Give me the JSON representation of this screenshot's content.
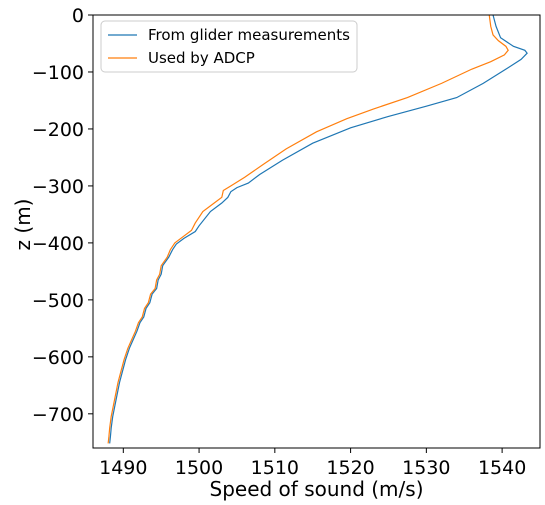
{
  "chart_data": {
    "type": "line",
    "xlabel": "Speed of sound (m/s)",
    "ylabel": "z (m)",
    "xlim": [
      1486,
      1545
    ],
    "ylim": [
      -760,
      0
    ],
    "x_ticks": [
      1490,
      1500,
      1510,
      1520,
      1530,
      1540
    ],
    "y_ticks": [
      0,
      -100,
      -200,
      -300,
      -400,
      -500,
      -600,
      -700
    ],
    "x_tick_labels": [
      "1490",
      "1500",
      "1510",
      "1520",
      "1530",
      "1540"
    ],
    "y_tick_labels": [
      "0",
      "−100",
      "−200",
      "−300",
      "−400",
      "−500",
      "−600",
      "−700"
    ],
    "grid": false,
    "legend_position": "top-left",
    "series": [
      {
        "name": "From glider measurements",
        "color": "#1f77b4",
        "points": [
          [
            1538.8,
            0
          ],
          [
            1539.2,
            -20
          ],
          [
            1539.8,
            -40
          ],
          [
            1541.5,
            -55
          ],
          [
            1543.0,
            -62
          ],
          [
            1543.3,
            -67
          ],
          [
            1542.5,
            -78
          ],
          [
            1540.5,
            -95
          ],
          [
            1537.5,
            -120
          ],
          [
            1534.0,
            -145
          ],
          [
            1530.0,
            -160
          ],
          [
            1525.0,
            -178
          ],
          [
            1520.0,
            -198
          ],
          [
            1515.0,
            -225
          ],
          [
            1511.0,
            -255
          ],
          [
            1508.0,
            -280
          ],
          [
            1506.5,
            -295
          ],
          [
            1505.0,
            -303
          ],
          [
            1504.2,
            -310
          ],
          [
            1503.8,
            -320
          ],
          [
            1503.0,
            -330
          ],
          [
            1501.5,
            -345
          ],
          [
            1500.0,
            -370
          ],
          [
            1499.5,
            -380
          ],
          [
            1498.0,
            -392
          ],
          [
            1497.0,
            -402
          ],
          [
            1496.5,
            -412
          ],
          [
            1496.0,
            -425
          ],
          [
            1495.2,
            -440
          ],
          [
            1495.0,
            -455
          ],
          [
            1494.6,
            -465
          ],
          [
            1494.4,
            -480
          ],
          [
            1493.8,
            -490
          ],
          [
            1493.5,
            -505
          ],
          [
            1493.0,
            -515
          ],
          [
            1492.7,
            -530
          ],
          [
            1492.2,
            -540
          ],
          [
            1491.8,
            -555
          ],
          [
            1491.3,
            -570
          ],
          [
            1490.8,
            -585
          ],
          [
            1490.3,
            -605
          ],
          [
            1489.9,
            -625
          ],
          [
            1489.5,
            -645
          ],
          [
            1489.2,
            -665
          ],
          [
            1488.9,
            -685
          ],
          [
            1488.6,
            -705
          ],
          [
            1488.4,
            -725
          ],
          [
            1488.3,
            -740
          ],
          [
            1488.2,
            -752
          ]
        ]
      },
      {
        "name": "Used by ADCP",
        "color": "#ff7f0e",
        "points": [
          [
            1538.3,
            0
          ],
          [
            1538.5,
            -20
          ],
          [
            1538.8,
            -35
          ],
          [
            1539.5,
            -45
          ],
          [
            1540.5,
            -55
          ],
          [
            1540.8,
            -62
          ],
          [
            1540.3,
            -70
          ],
          [
            1538.5,
            -82
          ],
          [
            1536.0,
            -95
          ],
          [
            1532.0,
            -120
          ],
          [
            1527.5,
            -145
          ],
          [
            1523.0,
            -165
          ],
          [
            1519.5,
            -182
          ],
          [
            1515.5,
            -205
          ],
          [
            1511.5,
            -235
          ],
          [
            1508.5,
            -262
          ],
          [
            1506.0,
            -285
          ],
          [
            1504.2,
            -300
          ],
          [
            1503.2,
            -308
          ],
          [
            1503.0,
            -320
          ],
          [
            1502.0,
            -330
          ],
          [
            1500.5,
            -345
          ],
          [
            1499.5,
            -365
          ],
          [
            1499.0,
            -378
          ],
          [
            1497.8,
            -390
          ],
          [
            1496.8,
            -400
          ],
          [
            1496.2,
            -412
          ],
          [
            1495.8,
            -425
          ],
          [
            1495.0,
            -440
          ],
          [
            1494.8,
            -455
          ],
          [
            1494.4,
            -465
          ],
          [
            1494.2,
            -480
          ],
          [
            1493.6,
            -490
          ],
          [
            1493.3,
            -505
          ],
          [
            1492.8,
            -515
          ],
          [
            1492.5,
            -530
          ],
          [
            1492.0,
            -540
          ],
          [
            1491.6,
            -555
          ],
          [
            1491.1,
            -570
          ],
          [
            1490.6,
            -585
          ],
          [
            1490.1,
            -605
          ],
          [
            1489.7,
            -625
          ],
          [
            1489.3,
            -645
          ],
          [
            1489.0,
            -665
          ],
          [
            1488.7,
            -685
          ],
          [
            1488.4,
            -705
          ],
          [
            1488.2,
            -725
          ],
          [
            1488.1,
            -740
          ],
          [
            1488.0,
            -752
          ]
        ]
      }
    ]
  }
}
